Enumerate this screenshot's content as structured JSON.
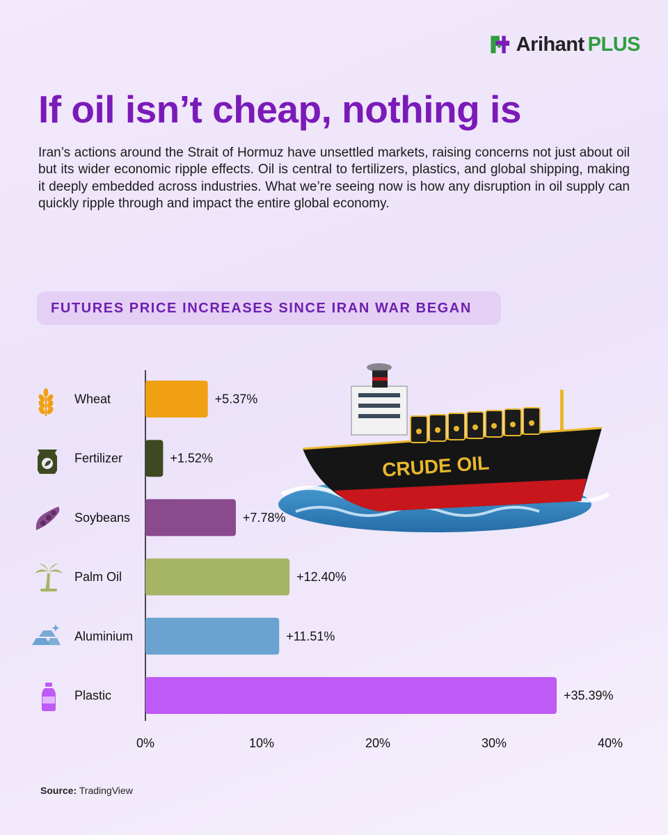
{
  "brand": {
    "name": "Arihant",
    "suffix": "PLUS"
  },
  "title": "If oil isn’t cheap, nothing is",
  "intro": "Iran’s actions around the Strait of Hormuz have unsettled markets, raising concerns not just about oil but its wider economic ripple effects. Oil is central to fertilizers, plastics, and global shipping, making it deeply embedded across industries. What we’re seeing now is how any disruption in oil supply can quickly ripple through and impact the entire global economy.",
  "ship_label": "CRUDE OIL",
  "chart_data": {
    "type": "bar",
    "orientation": "horizontal",
    "title": "FUTURES PRICE INCREASES SINCE IRAN WAR BEGAN",
    "categories": [
      "Wheat",
      "Fertilizer",
      "Soybeans",
      "Palm Oil",
      "Aluminium",
      "Plastic"
    ],
    "values": [
      5.37,
      1.52,
      7.78,
      12.4,
      11.51,
      35.39
    ],
    "value_labels": [
      "+5.37%",
      "+1.52%",
      "+7.78%",
      "+12.40%",
      "+11.51%",
      "+35.39%"
    ],
    "colors": [
      "#f0a012",
      "#3d4a21",
      "#8a4a8d",
      "#a5b565",
      "#6aa3d0",
      "#be5af5"
    ],
    "icons": [
      "wheat-icon",
      "fertilizer-bag-icon",
      "soybean-icon",
      "palm-tree-icon",
      "aluminium-ingot-icon",
      "plastic-bottle-icon"
    ],
    "xlim": [
      0,
      40
    ],
    "xticks": [
      "0%",
      "10%",
      "20%",
      "30%",
      "40%"
    ],
    "grid": false
  },
  "source": {
    "label": "Source:",
    "value": "TradingView"
  }
}
